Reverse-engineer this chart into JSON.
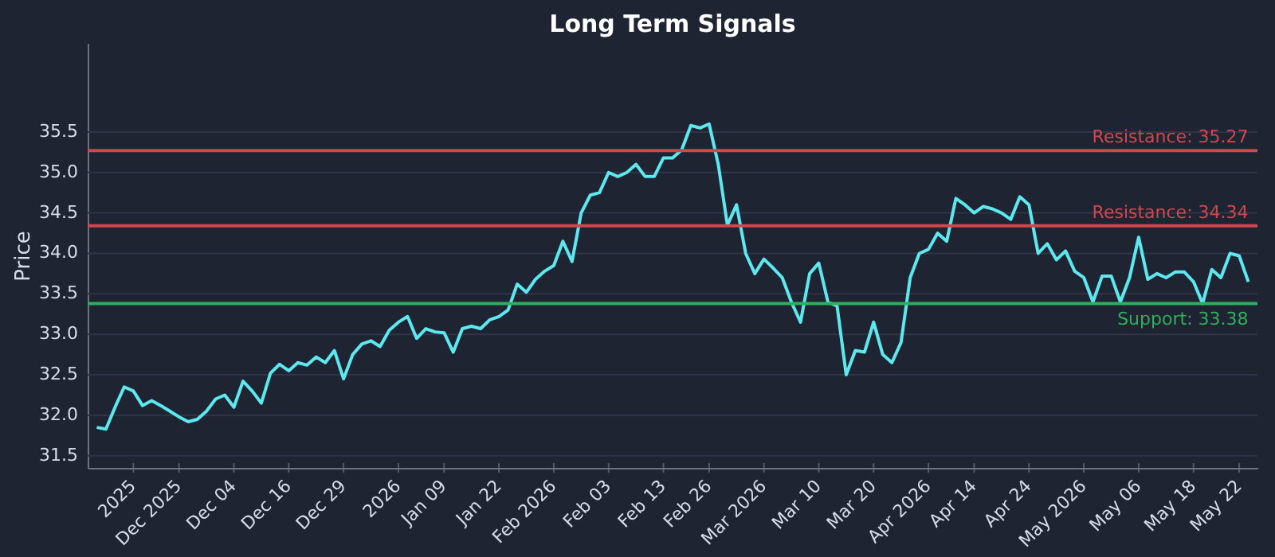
{
  "chart_data": {
    "type": "line",
    "title": "Long Term Signals",
    "ylabel": "Price",
    "categories": [
      null,
      null,
      null,
      null,
      "2025",
      null,
      null,
      null,
      null,
      "Dec 2025",
      null,
      null,
      null,
      null,
      null,
      "Dec 04",
      null,
      null,
      null,
      null,
      null,
      "Dec 16",
      null,
      null,
      null,
      null,
      null,
      "Dec 29",
      null,
      null,
      null,
      null,
      null,
      "2026",
      null,
      null,
      null,
      null,
      "Jan 09",
      null,
      null,
      null,
      null,
      null,
      "Jan 22",
      null,
      null,
      null,
      null,
      null,
      "Feb 2026",
      null,
      null,
      null,
      null,
      null,
      "Feb 03",
      null,
      null,
      null,
      null,
      null,
      "Feb 13",
      null,
      null,
      null,
      null,
      "Feb 26",
      null,
      null,
      null,
      null,
      null,
      "Mar 2026",
      null,
      null,
      null,
      null,
      null,
      "Mar 10",
      null,
      null,
      null,
      null,
      null,
      "Mar 20",
      null,
      null,
      null,
      null,
      null,
      "Apr 2026",
      null,
      null,
      null,
      null,
      "Apr 14",
      null,
      null,
      null,
      null,
      null,
      "Apr 24",
      null,
      null,
      null,
      null,
      null,
      "May 2026",
      null,
      null,
      null,
      null,
      null,
      "May 06",
      null,
      null,
      null,
      null,
      null,
      "May 18",
      null,
      null,
      null,
      null,
      "May 22",
      null
    ],
    "series": [
      {
        "color": "#5ce8ee",
        "values": [
          31.85,
          31.83,
          32.1,
          32.35,
          32.3,
          32.12,
          32.18,
          32.12,
          32.05,
          31.98,
          31.92,
          31.95,
          32.05,
          32.2,
          32.25,
          32.1,
          32.42,
          32.3,
          32.15,
          32.52,
          32.63,
          32.55,
          32.65,
          32.62,
          32.72,
          32.65,
          32.8,
          32.45,
          32.75,
          32.88,
          32.92,
          32.85,
          33.05,
          33.15,
          33.22,
          32.95,
          33.07,
          33.03,
          33.02,
          32.78,
          33.07,
          33.1,
          33.07,
          33.18,
          33.22,
          33.3,
          33.62,
          33.52,
          33.68,
          33.78,
          33.85,
          34.15,
          33.9,
          34.5,
          34.72,
          34.75,
          35.0,
          34.95,
          35.0,
          35.1,
          34.95,
          34.95,
          35.18,
          35.18,
          35.28,
          35.58,
          35.55,
          35.6,
          35.1,
          34.35,
          34.6,
          34.0,
          33.75,
          33.93,
          33.82,
          33.7,
          33.4,
          33.15,
          33.75,
          33.88,
          33.4,
          33.35,
          32.5,
          32.8,
          32.78,
          33.15,
          32.75,
          32.65,
          32.9,
          33.7,
          34.0,
          34.05,
          34.25,
          34.15,
          34.68,
          34.6,
          34.5,
          34.58,
          34.55,
          34.5,
          34.42,
          34.7,
          34.6,
          34.0,
          34.12,
          33.92,
          34.03,
          33.78,
          33.7,
          33.4,
          33.72,
          33.72,
          33.4,
          33.7,
          34.2,
          33.68,
          33.75,
          33.7,
          33.77,
          33.77,
          33.65,
          33.38,
          33.8,
          33.7,
          34.0,
          33.97,
          33.65
        ]
      }
    ],
    "ylim": [
      31.35,
      36.6
    ],
    "yticks": [
      31.5,
      {
        "value": 32,
        "label": "32.0"
      },
      32.5,
      {
        "value": 33,
        "label": "33.0"
      },
      33.5,
      {
        "value": 34,
        "label": "34.0"
      },
      34.5,
      {
        "value": 35,
        "label": "35.0"
      },
      35.5
    ],
    "ref_lines": [
      {
        "axis": "y",
        "value": 35.27,
        "label": "Resistance: 35.27",
        "color": "#d0474d"
      },
      {
        "axis": "y",
        "value": 34.34,
        "label": "Resistance: 34.34",
        "color": "#d0474d"
      },
      {
        "axis": "y",
        "value": 33.38,
        "label": "Support: 33.38",
        "color": "#2fae5c"
      }
    ],
    "grid": "y"
  }
}
